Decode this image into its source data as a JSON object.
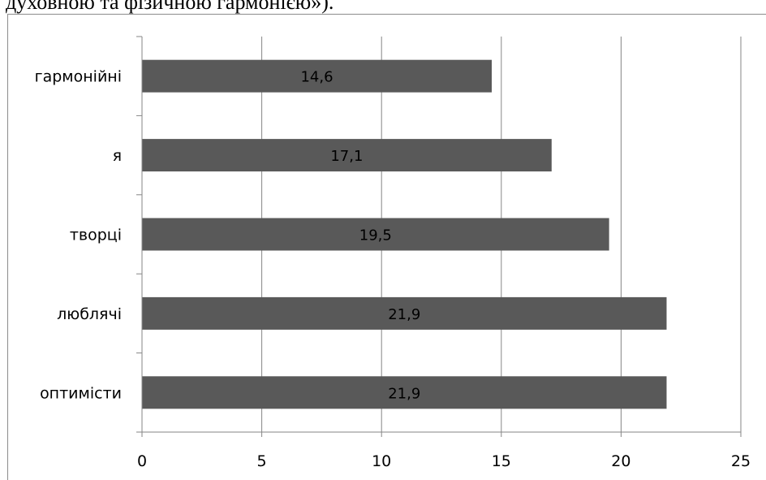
{
  "caption_fragment": ", духовною та фізичною гармонією»).",
  "chart_data": {
    "type": "bar",
    "orientation": "horizontal",
    "categories": [
      "гармонійні",
      "я",
      "творці",
      "люблячі",
      "оптимісти"
    ],
    "values": [
      14.6,
      17.1,
      19.5,
      21.9,
      21.9
    ],
    "data_labels": [
      "14,6",
      "17,1",
      "19,5",
      "21,9",
      "21,9"
    ],
    "x_ticks": [
      "0",
      "5",
      "10",
      "15",
      "20",
      "25"
    ],
    "xlim": [
      0,
      25
    ],
    "gridlines": "vertical",
    "legend": "none",
    "bar_color": "#595959",
    "grid_color": "#868686",
    "title": "",
    "xlabel": "",
    "ylabel": ""
  }
}
